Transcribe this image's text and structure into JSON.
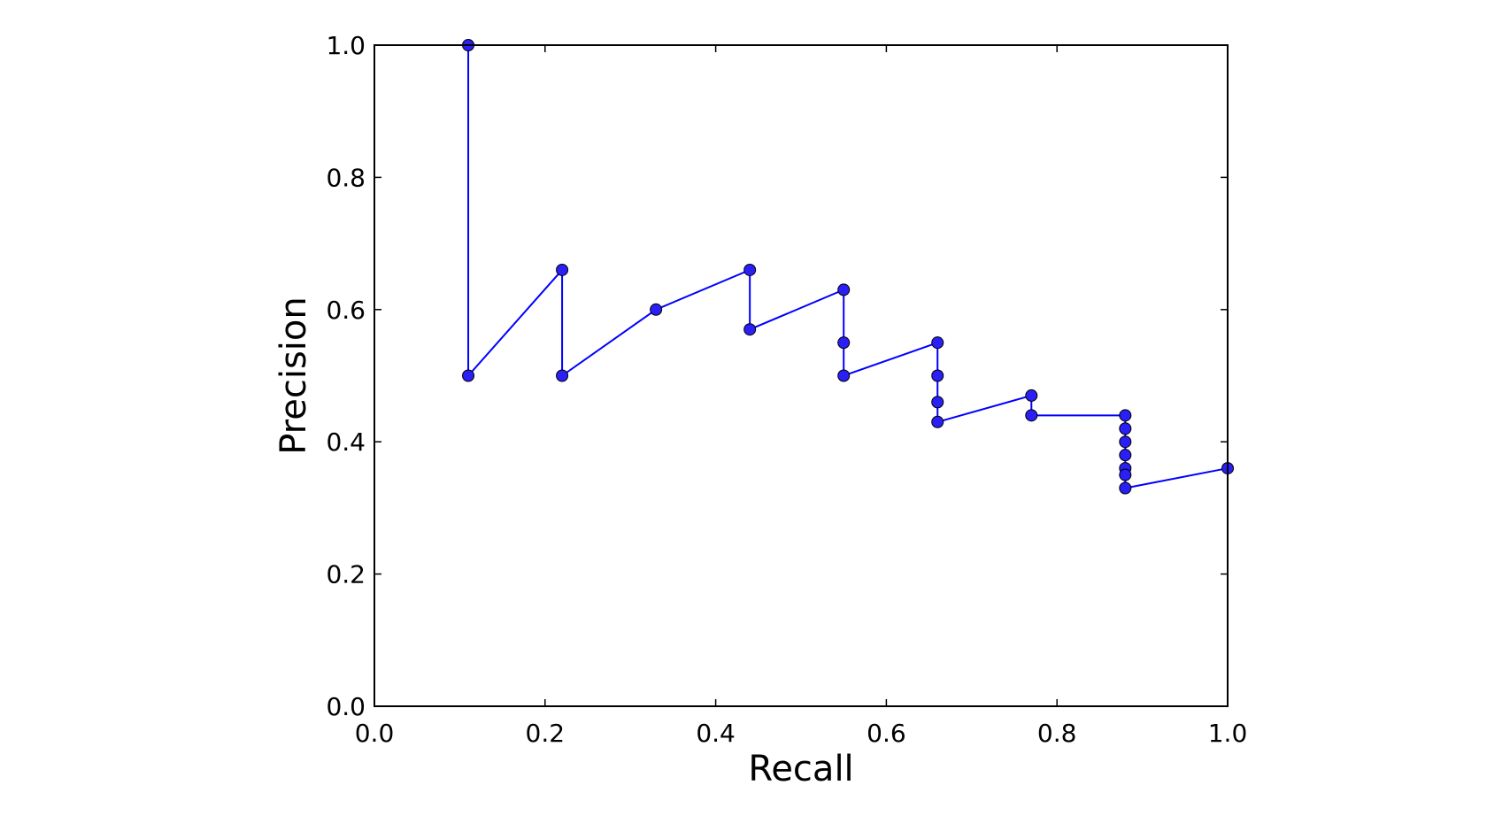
{
  "chart_data": {
    "type": "line",
    "title": "",
    "xlabel": "Recall",
    "ylabel": "Precision",
    "xlim": [
      0.0,
      1.0
    ],
    "ylim": [
      0.0,
      1.0
    ],
    "x_ticks": [
      "0.0",
      "0.2",
      "0.4",
      "0.6",
      "0.8",
      "1.0"
    ],
    "y_ticks": [
      "0.0",
      "0.2",
      "0.4",
      "0.6",
      "0.8",
      "1.0"
    ],
    "grid": false,
    "legend": "none",
    "marker": "circle",
    "series": [
      {
        "color": "#0000ff",
        "marker_fill": "#2a1ff5",
        "x": [
          0.11,
          0.11,
          0.22,
          0.22,
          0.33,
          0.44,
          0.44,
          0.55,
          0.55,
          0.55,
          0.66,
          0.66,
          0.66,
          0.66,
          0.77,
          0.77,
          0.88,
          0.88,
          0.88,
          0.88,
          0.88,
          0.88,
          0.88,
          1.0
        ],
        "y": [
          1.0,
          0.5,
          0.66,
          0.5,
          0.6,
          0.66,
          0.57,
          0.63,
          0.55,
          0.5,
          0.55,
          0.5,
          0.46,
          0.43,
          0.47,
          0.44,
          0.44,
          0.42,
          0.4,
          0.38,
          0.36,
          0.35,
          0.33,
          0.36
        ]
      }
    ]
  }
}
